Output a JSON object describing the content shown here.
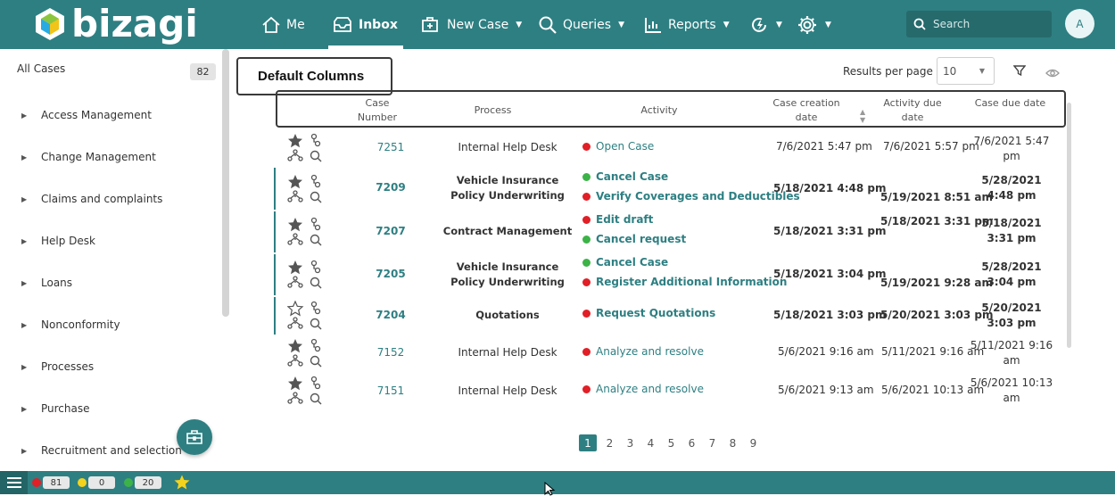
{
  "brand": {
    "name": "bizagi"
  },
  "nav": {
    "me": "Me",
    "inbox": "Inbox",
    "new_case": "New Case",
    "queries": "Queries",
    "reports": "Reports"
  },
  "search": {
    "placeholder": "Search"
  },
  "user": {
    "initial": "A"
  },
  "sidebar": {
    "all_cases_label": "All Cases",
    "all_cases_count": "82",
    "items": [
      {
        "label": "Access Management"
      },
      {
        "label": "Change Management"
      },
      {
        "label": "Claims and complaints"
      },
      {
        "label": "Help Desk"
      },
      {
        "label": "Loans"
      },
      {
        "label": "Nonconformity"
      },
      {
        "label": "Processes"
      },
      {
        "label": "Purchase"
      },
      {
        "label": "Recruitment and selection"
      }
    ]
  },
  "toolbar": {
    "callout": "Default Columns",
    "results_per_page_label": "Results per page",
    "results_per_page_value": "10"
  },
  "table": {
    "headers": {
      "case_number": "Case Number",
      "process": "Process",
      "activity": "Activity",
      "creation_date": "Case creation date",
      "activity_due": "Activity due date",
      "case_due": "Case due date"
    },
    "rows": [
      {
        "case": "7251",
        "process": "Internal Help Desk",
        "process_bold": false,
        "starred": true,
        "activities": [
          {
            "name": "Open Case",
            "status": "red",
            "bold": false
          }
        ],
        "creation": "7/6/2021 5:47 pm",
        "activity_due": "7/6/2021 5:57 pm",
        "case_due": "7/6/2021 5:47 pm",
        "dates_bold": false,
        "marked": false
      },
      {
        "case": "7209",
        "process": "Vehicle Insurance Policy Underwriting",
        "process_bold": true,
        "starred": true,
        "activities": [
          {
            "name": "Cancel Case",
            "status": "green",
            "bold": true
          },
          {
            "name": "Verify Coverages and Deductibles",
            "status": "red",
            "bold": true
          }
        ],
        "creation": "5/18/2021 4:48 pm",
        "activity_due": "5/19/2021 8:51 am",
        "case_due": "5/28/2021 4:48 pm",
        "dates_bold": true,
        "marked": true
      },
      {
        "case": "7207",
        "process": "Contract Management",
        "process_bold": true,
        "starred": true,
        "activities": [
          {
            "name": "Edit draft",
            "status": "red",
            "bold": true
          },
          {
            "name": "Cancel request",
            "status": "green",
            "bold": true
          }
        ],
        "creation": "5/18/2021 3:31 pm",
        "activity_due": "5/18/2021 3:31 pm",
        "case_due": "5/18/2021 3:31 pm",
        "dates_bold": true,
        "marked": true
      },
      {
        "case": "7205",
        "process": "Vehicle Insurance Policy Underwriting",
        "process_bold": true,
        "starred": true,
        "activities": [
          {
            "name": "Cancel Case",
            "status": "green",
            "bold": true
          },
          {
            "name": "Register Additional Information",
            "status": "red",
            "bold": true
          }
        ],
        "creation": "5/18/2021 3:04 pm",
        "activity_due": "5/19/2021 9:28 am",
        "case_due": "5/28/2021 3:04 pm",
        "dates_bold": true,
        "marked": true
      },
      {
        "case": "7204",
        "process": "Quotations",
        "process_bold": true,
        "starred": false,
        "activities": [
          {
            "name": "Request Quotations",
            "status": "red",
            "bold": true
          }
        ],
        "creation": "5/18/2021 3:03 pm",
        "activity_due": "5/20/2021 3:03 pm",
        "case_due": "5/20/2021 3:03 pm",
        "dates_bold": true,
        "marked": true
      },
      {
        "case": "7152",
        "process": "Internal Help Desk",
        "process_bold": false,
        "starred": true,
        "activities": [
          {
            "name": "Analyze and resolve",
            "status": "red",
            "bold": false
          }
        ],
        "creation": "5/6/2021 9:16 am",
        "activity_due": "5/11/2021 9:16 am",
        "case_due": "5/11/2021 9:16 am",
        "dates_bold": false,
        "marked": false
      },
      {
        "case": "7151",
        "process": "Internal Help Desk",
        "process_bold": false,
        "starred": true,
        "activities": [
          {
            "name": "Analyze and resolve",
            "status": "red",
            "bold": false
          }
        ],
        "creation": "5/6/2021 9:13 am",
        "activity_due": "5/6/2021 10:13 am",
        "case_due": "5/6/2021 10:13 am",
        "dates_bold": false,
        "marked": false
      }
    ]
  },
  "pagination": {
    "pages": [
      "1",
      "2",
      "3",
      "4",
      "5",
      "6",
      "7",
      "8",
      "9"
    ],
    "active": "1"
  },
  "status_bar": {
    "red_count": "81",
    "yellow_count": "0",
    "green_count": "20"
  },
  "colors": {
    "brand": "#2e7f82",
    "red": "#e11f26",
    "yellow": "#f5d31c",
    "green": "#3cb347"
  }
}
